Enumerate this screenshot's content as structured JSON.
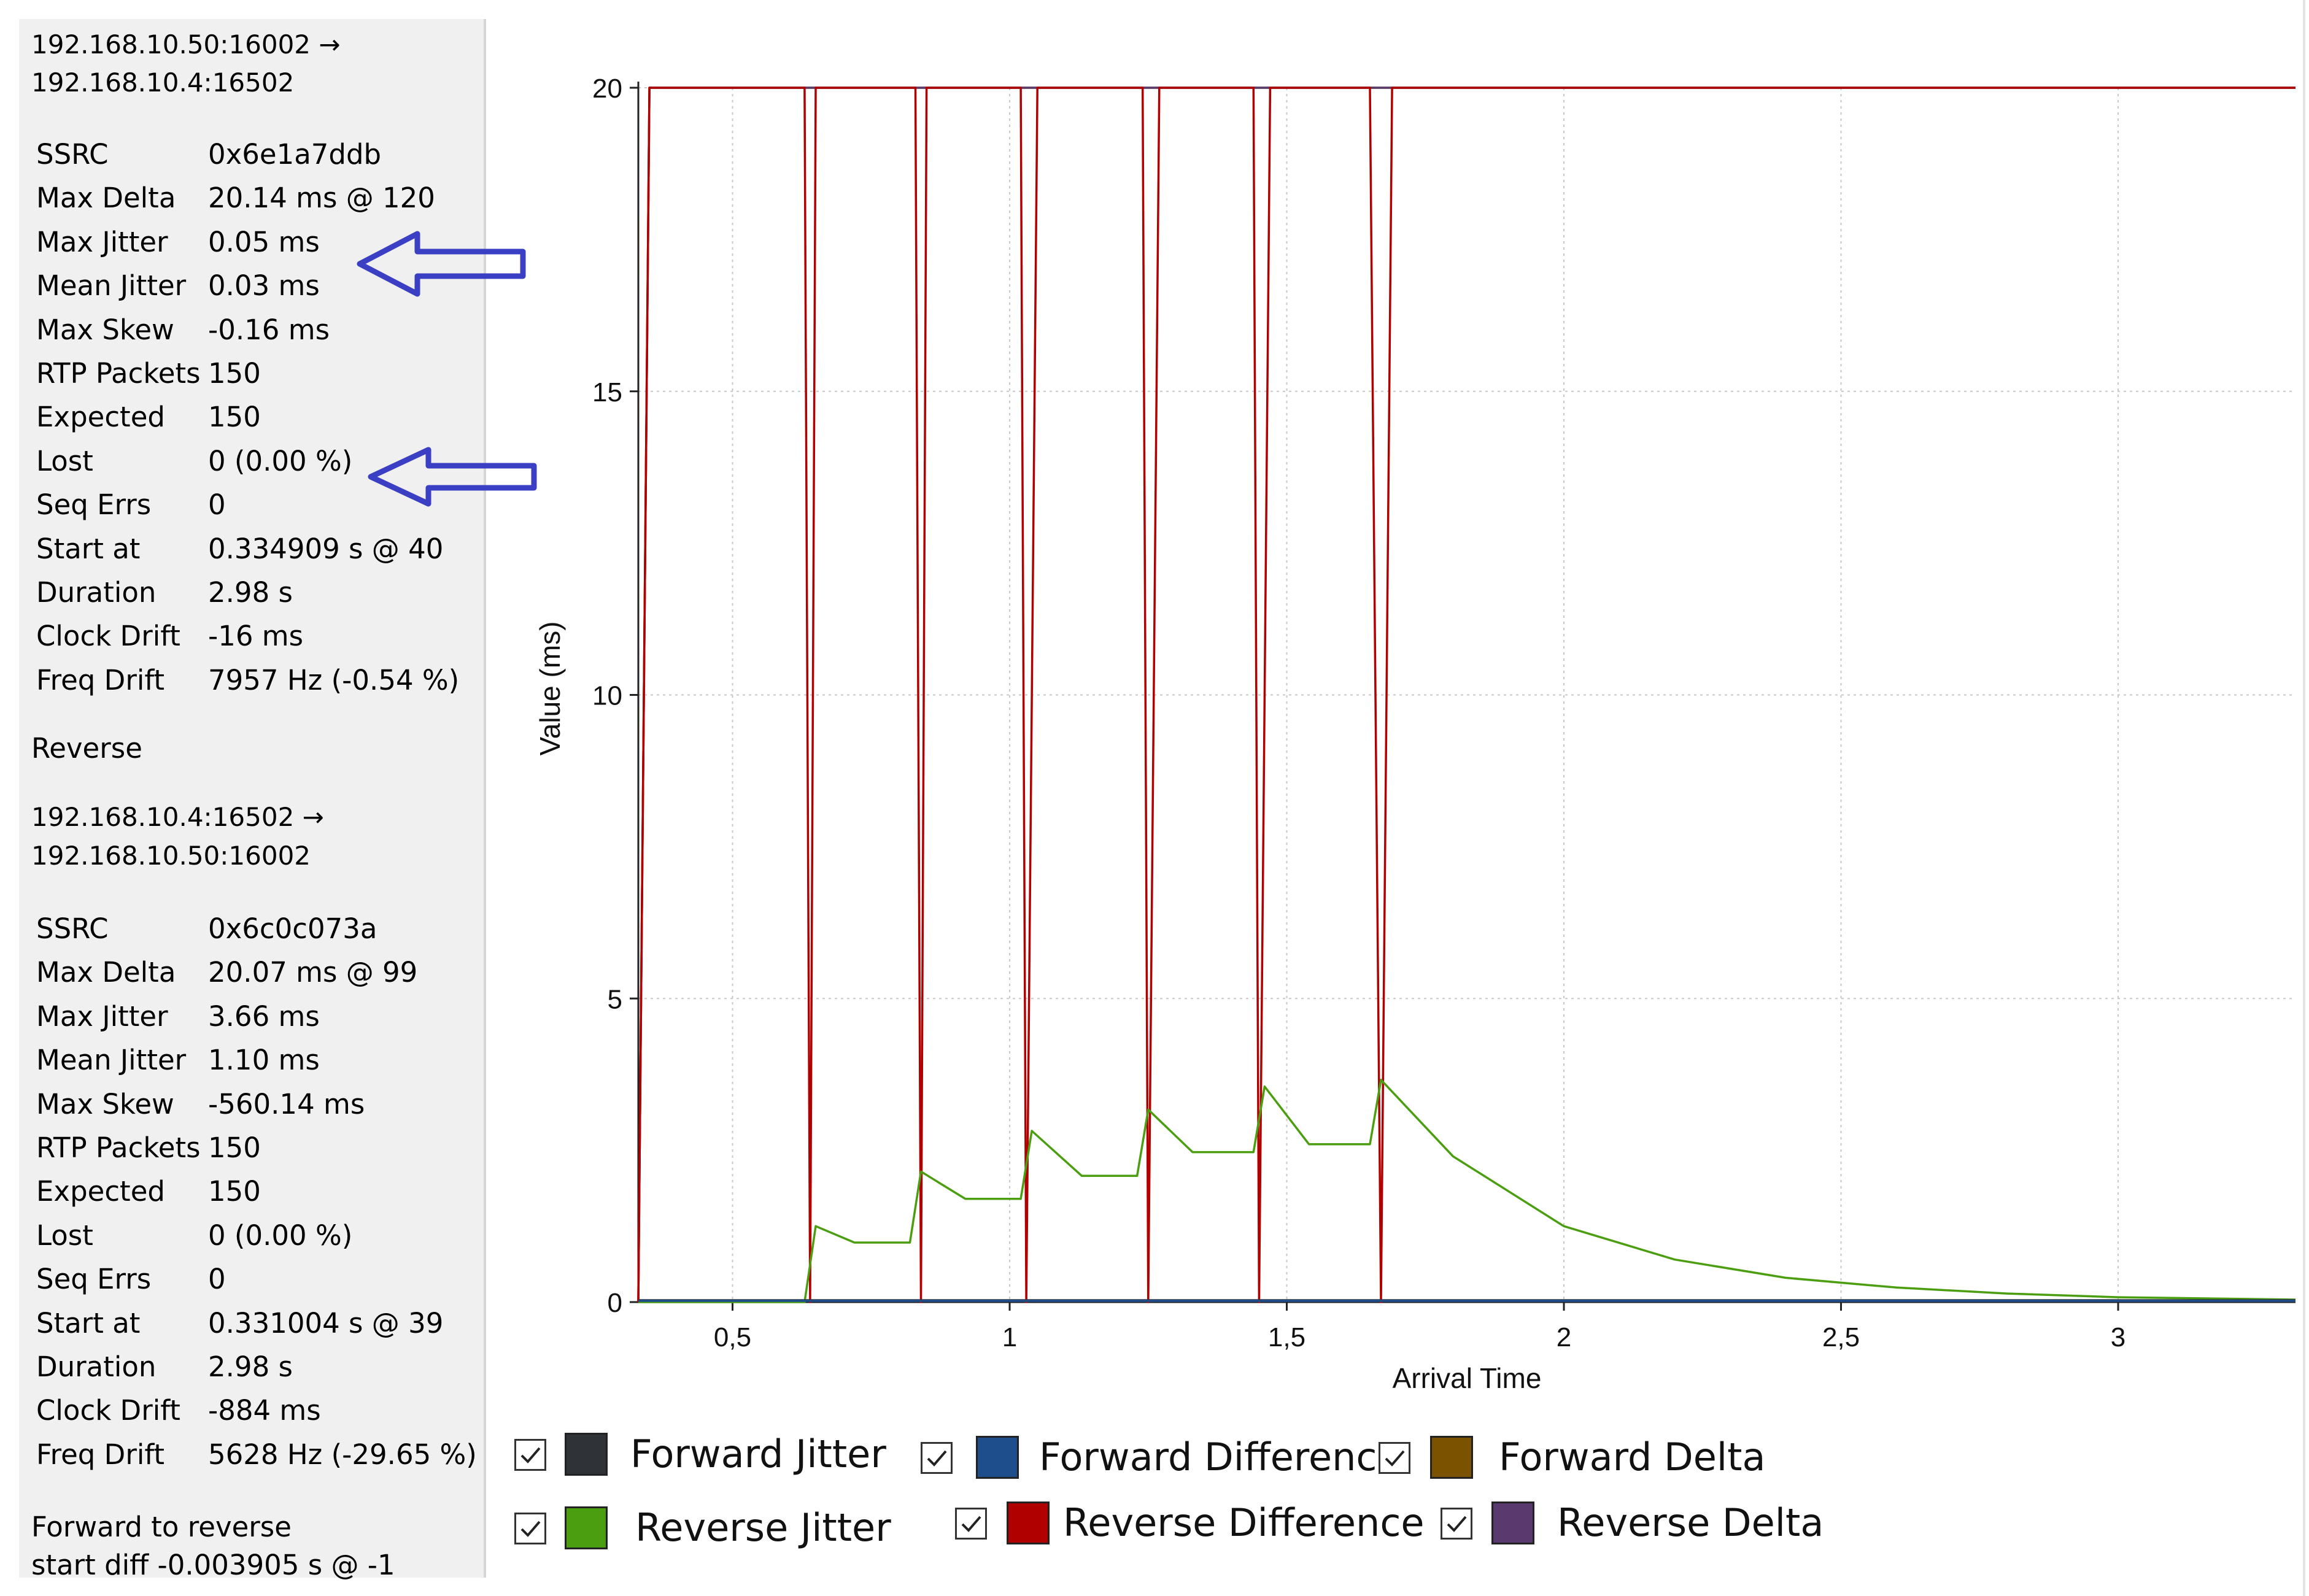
{
  "forward": {
    "header_line1": "192.168.10.50:16002 →",
    "header_line2": "192.168.10.4:16502",
    "stats": [
      {
        "label": "SSRC",
        "value": "0x6e1a7ddb"
      },
      {
        "label": "Max Delta",
        "value": "20.14 ms @ 120"
      },
      {
        "label": "Max Jitter",
        "value": "0.05 ms"
      },
      {
        "label": "Mean Jitter",
        "value": "0.03 ms"
      },
      {
        "label": "Max Skew",
        "value": "-0.16 ms"
      },
      {
        "label": "RTP Packets",
        "value": "150"
      },
      {
        "label": "Expected",
        "value": "150"
      },
      {
        "label": "Lost",
        "value": "0 (0.00 %)"
      },
      {
        "label": "Seq Errs",
        "value": "0"
      },
      {
        "label": "Start at",
        "value": "0.334909 s @ 40"
      },
      {
        "label": "Duration",
        "value": "2.98 s"
      },
      {
        "label": "Clock Drift",
        "value": "-16 ms"
      },
      {
        "label": "Freq Drift",
        "value": "7957 Hz (-0.54 %)"
      }
    ]
  },
  "reverse_heading": "Reverse",
  "reverse": {
    "header_line1": "192.168.10.4:16502 →",
    "header_line2": "192.168.10.50:16002",
    "stats": [
      {
        "label": "SSRC",
        "value": "0x6c0c073a"
      },
      {
        "label": "Max Delta",
        "value": "20.07 ms @ 99"
      },
      {
        "label": "Max Jitter",
        "value": "3.66 ms"
      },
      {
        "label": "Mean Jitter",
        "value": "1.10 ms"
      },
      {
        "label": "Max Skew",
        "value": "-560.14 ms"
      },
      {
        "label": "RTP Packets",
        "value": "150"
      },
      {
        "label": "Expected",
        "value": "150"
      },
      {
        "label": "Lost",
        "value": "0 (0.00 %)"
      },
      {
        "label": "Seq Errs",
        "value": "0"
      },
      {
        "label": "Start at",
        "value": "0.331004 s @ 39"
      },
      {
        "label": "Duration",
        "value": "2.98 s"
      },
      {
        "label": "Clock Drift",
        "value": "-884 ms"
      },
      {
        "label": "Freq Drift",
        "value": "5628 Hz (-29.65 %)"
      }
    ]
  },
  "footer_line1": "Forward to reverse",
  "footer_line2": "start diff -0.003905 s @ -1",
  "annotation_arrow_color": "#3b3fc4",
  "legend": [
    {
      "label": "Forward Jitter",
      "color": "#2f3337",
      "checked": true
    },
    {
      "label": "Forward Difference",
      "color": "#1f4e8c",
      "checked": true
    },
    {
      "label": "Forward Delta",
      "color": "#7a5200",
      "checked": true
    },
    {
      "label": "Reverse Jitter",
      "color": "#4a9e10",
      "checked": true
    },
    {
      "label": "Reverse Difference",
      "color": "#b00000",
      "checked": true
    },
    {
      "label": "Reverse Delta",
      "color": "#5a3a6e",
      "checked": true
    }
  ],
  "chart_data": {
    "type": "line",
    "xlabel": "Arrival Time",
    "ylabel": "Value (ms)",
    "xlim": [
      0.33,
      3.32
    ],
    "ylim": [
      0,
      20
    ],
    "x_ticks": [
      0.5,
      1,
      1.5,
      2,
      2.5,
      3
    ],
    "x_tick_labels": [
      "0,5",
      "1",
      "1,5",
      "2",
      "2,5",
      "3"
    ],
    "y_ticks": [
      0,
      5,
      10,
      15,
      20
    ],
    "y_tick_labels": [
      "0",
      "5",
      "10",
      "15",
      "20"
    ],
    "grid": true,
    "series": [
      {
        "name": "Forward Delta",
        "color": "#7a5200",
        "x": [
          0.33,
          0.35,
          3.32
        ],
        "y": [
          0,
          20,
          20
        ]
      },
      {
        "name": "Reverse Delta",
        "color": "#5a3a6e",
        "x": [
          0.33,
          0.35,
          3.32
        ],
        "y": [
          0,
          20,
          20
        ]
      },
      {
        "name": "Reverse Difference",
        "color": "#b00000",
        "x": [
          0.33,
          0.35,
          0.63,
          0.64,
          0.65,
          0.83,
          0.84,
          0.85,
          1.02,
          1.03,
          1.05,
          1.24,
          1.25,
          1.27,
          1.44,
          1.45,
          1.47,
          1.65,
          1.67,
          1.69,
          3.32
        ],
        "y": [
          0,
          20,
          20,
          0,
          20,
          20,
          0,
          20,
          20,
          0,
          20,
          20,
          0,
          20,
          20,
          0,
          20,
          20,
          0,
          20,
          20
        ]
      },
      {
        "name": "Reverse Jitter",
        "color": "#4a9e10",
        "x": [
          0.33,
          0.63,
          0.65,
          0.72,
          0.82,
          0.84,
          0.92,
          1.02,
          1.04,
          1.13,
          1.23,
          1.25,
          1.33,
          1.44,
          1.46,
          1.54,
          1.65,
          1.67,
          1.8,
          2.0,
          2.2,
          2.4,
          2.6,
          2.8,
          3.0,
          3.32
        ],
        "y": [
          0,
          0,
          1.25,
          0.98,
          0.98,
          2.15,
          1.7,
          1.7,
          2.82,
          2.08,
          2.08,
          3.17,
          2.47,
          2.47,
          3.55,
          2.6,
          2.6,
          3.66,
          2.4,
          1.25,
          0.7,
          0.4,
          0.24,
          0.14,
          0.08,
          0.04
        ]
      },
      {
        "name": "Forward Jitter",
        "color": "#2f3337",
        "x": [
          0.33,
          3.32
        ],
        "y": [
          0.03,
          0.03
        ]
      },
      {
        "name": "Forward Difference",
        "color": "#1f4e8c",
        "x": [
          0.33,
          3.32
        ],
        "y": [
          0.02,
          0.02
        ]
      }
    ]
  }
}
